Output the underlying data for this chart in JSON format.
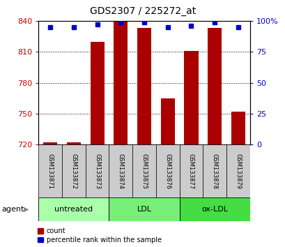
{
  "title": "GDS2307 / 225272_at",
  "samples": [
    "GSM133871",
    "GSM133872",
    "GSM133873",
    "GSM133874",
    "GSM133875",
    "GSM133876",
    "GSM133877",
    "GSM133878",
    "GSM133879"
  ],
  "count_values": [
    722,
    722,
    820,
    840,
    833,
    765,
    811,
    833,
    752
  ],
  "percentile_values": [
    95,
    95,
    97,
    99,
    99,
    95,
    96,
    99,
    95
  ],
  "ylim_left": [
    720,
    840
  ],
  "ylim_right": [
    0,
    100
  ],
  "yticks_left": [
    720,
    750,
    780,
    810,
    840
  ],
  "yticks_right": [
    0,
    25,
    50,
    75,
    100
  ],
  "bar_color": "#aa0000",
  "dot_color": "#0000cc",
  "bar_bottom": 720,
  "groups": [
    {
      "label": "untreated",
      "indices": [
        0,
        1,
        2
      ],
      "color": "#aaffaa"
    },
    {
      "label": "LDL",
      "indices": [
        3,
        4,
        5
      ],
      "color": "#77ee77"
    },
    {
      "label": "ox-LDL",
      "indices": [
        6,
        7,
        8
      ],
      "color": "#44dd44"
    }
  ],
  "agent_label": "agent",
  "legend_count_label": "count",
  "legend_pct_label": "percentile rank within the sample",
  "left_tick_color": "#cc0000",
  "right_tick_color": "#0000cc",
  "label_area_color": "#cccccc",
  "bar_width": 0.6,
  "dot_size": 4,
  "title_fontsize": 10,
  "tick_fontsize": 8,
  "sample_fontsize": 6,
  "group_fontsize": 8,
  "legend_fontsize": 7
}
